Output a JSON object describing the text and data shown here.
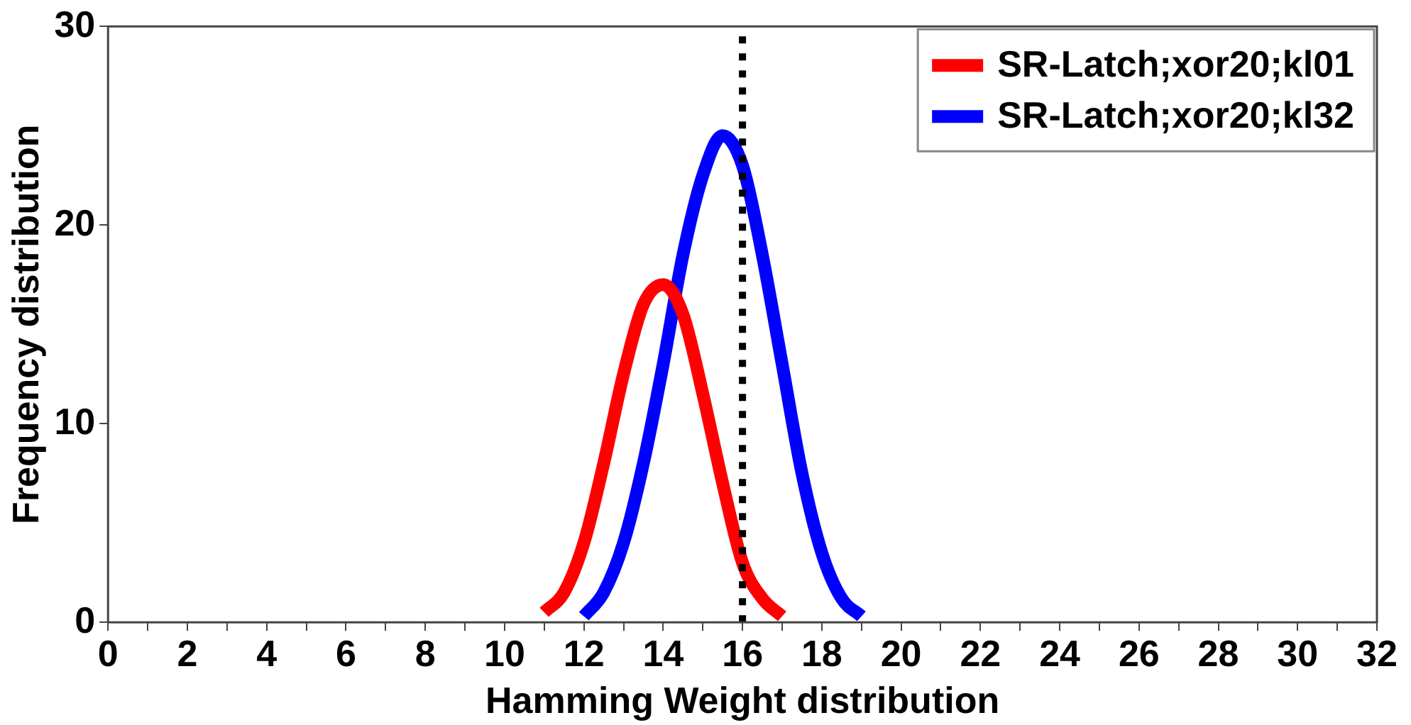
{
  "chart_data": {
    "type": "line",
    "xlabel": "Hamming Weight distribution",
    "ylabel": "Frequency distribution",
    "xlim": [
      0,
      32
    ],
    "ylim": [
      0,
      30
    ],
    "xticks": [
      0,
      {
        "value": 1,
        "label": null
      },
      2,
      {
        "value": 3,
        "label": null
      },
      4,
      {
        "value": 5,
        "label": null
      },
      6,
      {
        "value": 7,
        "label": null
      },
      8,
      {
        "value": 9,
        "label": null
      },
      10,
      {
        "value": 11,
        "label": null
      },
      12,
      {
        "value": 13,
        "label": null
      },
      14,
      {
        "value": 15,
        "label": null
      },
      16,
      {
        "value": 17,
        "label": null
      },
      18,
      {
        "value": 19,
        "label": null
      },
      20,
      {
        "value": 21,
        "label": null
      },
      22,
      {
        "value": 23,
        "label": null
      },
      24,
      {
        "value": 25,
        "label": null
      },
      26,
      {
        "value": 27,
        "label": null
      },
      28,
      {
        "value": 29,
        "label": null
      },
      30,
      {
        "value": 31,
        "label": null
      },
      32
    ],
    "yticks": [
      0,
      10,
      20,
      30
    ],
    "grid": false,
    "legend": "top right",
    "marker": "none",
    "line_style": "solid",
    "series": [
      {
        "name": "SR-Latch;xor20;kl01",
        "color": "#ff0000",
        "x": [
          11,
          11.5,
          12,
          12.5,
          13,
          13.5,
          14,
          14.5,
          15,
          15.5,
          16,
          16.5,
          17
        ],
        "values": [
          0.5,
          1.5,
          4,
          8,
          12.5,
          16,
          17,
          15.5,
          11.5,
          7,
          3,
          1.2,
          0.3
        ]
      },
      {
        "name": "SR-Latch;xor20;kl32",
        "color": "#0000ff",
        "x": [
          12,
          12.5,
          13,
          13.5,
          14,
          14.5,
          15,
          15.5,
          16,
          16.5,
          17,
          17.5,
          18,
          18.5,
          19
        ],
        "values": [
          0.3,
          1.5,
          4,
          8,
          13,
          18.5,
          22.5,
          24.5,
          23,
          18.5,
          13,
          7.5,
          3.5,
          1.2,
          0.3
        ]
      }
    ],
    "ref_lines": [
      {
        "axis": "x",
        "value": 16,
        "color": "#000000",
        "line_style": "dotted"
      }
    ]
  }
}
